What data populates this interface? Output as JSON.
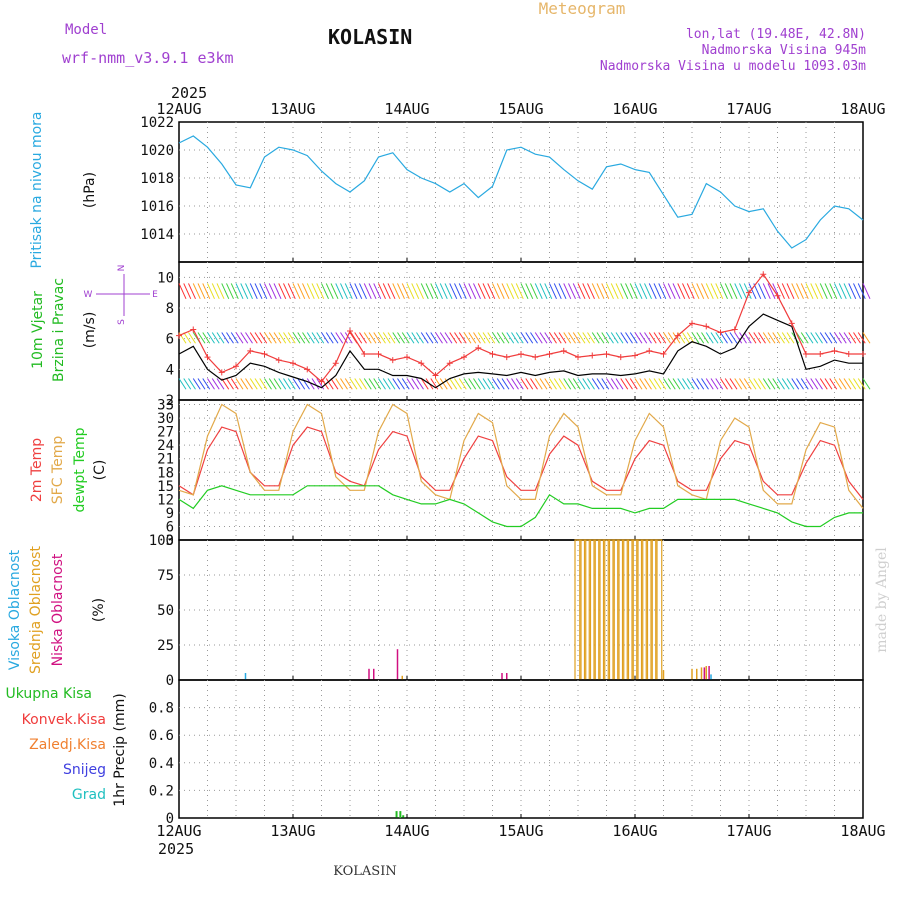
{
  "header": {
    "model_label": "Model",
    "model_name": "wrf-nmm_v3.9.1  e3km",
    "station": "KOLASIN",
    "chart_kind": "Meteogram",
    "lonlat": "lon,lat (19.48E, 42.8N)",
    "altitude": "Nadmorska Visina 945m",
    "model_altitude": "Nadmorska Visina u modelu 1093.03m",
    "year": "2025",
    "footer_station": "KOLASIN",
    "watermark": "made by Angel"
  },
  "colors": {
    "pressure": "#29a9e0",
    "wind_line": "#000000",
    "gust": "#f03c3c",
    "temp2m": "#ef4040",
    "sfc_temp": "#e2a94a",
    "dewpt": "#22cc22",
    "cloud_high": "#29a9e0",
    "cloud_mid": "#e0a020",
    "cloud_low": "#d01080",
    "rain": "#22bb22"
  },
  "chart_data": [
    {
      "type": "line",
      "id": "pressure",
      "title": "Pritisak na nivou mora",
      "ylabel": "(hPa)",
      "ylim": [
        1012,
        1022
      ],
      "yticks": [
        1014,
        1016,
        1018,
        1020,
        1022
      ],
      "x_unit": "hours since 12AUG 00",
      "x": [
        0,
        3,
        6,
        9,
        12,
        15,
        18,
        21,
        24,
        27,
        30,
        33,
        36,
        39,
        42,
        45,
        48,
        51,
        54,
        57,
        60,
        63,
        66,
        69,
        72,
        75,
        78,
        81,
        84,
        87,
        90,
        93,
        96,
        99,
        102,
        105,
        108,
        111,
        114,
        117,
        120,
        123,
        126,
        129,
        132,
        135,
        138,
        141,
        144
      ],
      "series": [
        {
          "name": "Pritisak",
          "values": [
            1020.5,
            1021.0,
            1020.2,
            1019.0,
            1017.5,
            1017.3,
            1019.5,
            1020.2,
            1020.0,
            1019.6,
            1018.5,
            1017.6,
            1017.0,
            1017.8,
            1019.5,
            1019.8,
            1018.6,
            1018.0,
            1017.6,
            1017.0,
            1017.6,
            1016.6,
            1017.4,
            1020.0,
            1020.2,
            1019.7,
            1019.5,
            1018.6,
            1017.8,
            1017.2,
            1018.8,
            1019.0,
            1018.6,
            1018.4,
            1016.8,
            1015.2,
            1015.4,
            1017.6,
            1017.0,
            1016.0,
            1015.6,
            1015.8,
            1014.2,
            1013.0,
            1013.6,
            1015.0,
            1016.0,
            1015.8,
            1015.0
          ]
        }
      ]
    },
    {
      "type": "line",
      "id": "wind",
      "title": "10m Vjetar",
      "title2": "Brzina i Pravac",
      "ylabel": "(m/s)",
      "ylim": [
        2,
        11
      ],
      "yticks": [
        2,
        4,
        6,
        8,
        10
      ],
      "compass": {
        "north": "N",
        "west": "W",
        "east": "E",
        "south": "S"
      },
      "x": [
        0,
        3,
        6,
        9,
        12,
        15,
        18,
        21,
        24,
        27,
        30,
        33,
        36,
        39,
        42,
        45,
        48,
        51,
        54,
        57,
        60,
        63,
        66,
        69,
        72,
        75,
        78,
        81,
        84,
        87,
        90,
        93,
        96,
        99,
        102,
        105,
        108,
        111,
        114,
        117,
        120,
        123,
        126,
        129,
        132,
        135,
        138,
        141,
        144
      ],
      "series": [
        {
          "name": "Brzina",
          "values": [
            5.0,
            5.5,
            4.0,
            3.3,
            3.6,
            4.4,
            4.2,
            3.8,
            3.5,
            3.2,
            2.8,
            3.6,
            5.2,
            4.0,
            4.0,
            3.6,
            3.6,
            3.4,
            2.8,
            3.4,
            3.7,
            3.8,
            3.7,
            3.6,
            3.8,
            3.6,
            3.8,
            3.9,
            3.6,
            3.7,
            3.7,
            3.6,
            3.7,
            3.9,
            3.7,
            5.2,
            5.8,
            5.5,
            5.0,
            5.4,
            6.8,
            7.6,
            7.2,
            6.8,
            4.0,
            4.2,
            4.6,
            4.4,
            4.4
          ]
        },
        {
          "name": "Udar",
          "values": [
            6.2,
            6.6,
            4.8,
            3.8,
            4.2,
            5.2,
            5.0,
            4.6,
            4.4,
            4.0,
            3.2,
            4.4,
            6.5,
            5.0,
            5.0,
            4.6,
            4.8,
            4.4,
            3.6,
            4.4,
            4.8,
            5.4,
            5.0,
            4.8,
            5.0,
            4.8,
            5.0,
            5.2,
            4.8,
            4.9,
            5.0,
            4.8,
            4.9,
            5.2,
            5.0,
            6.2,
            7.0,
            6.8,
            6.4,
            6.6,
            9.0,
            10.2,
            8.8,
            7.0,
            5.0,
            5.0,
            5.2,
            5.0,
            5.0
          ]
        }
      ]
    },
    {
      "type": "line",
      "id": "temperature",
      "title": "2m Temp",
      "title2": "SFC Temp",
      "title3": "dewpt Temp",
      "ylabel": "(C)",
      "ylim": [
        3,
        34
      ],
      "yticks": [
        3,
        6,
        9,
        12,
        15,
        18,
        21,
        24,
        27,
        30,
        33
      ],
      "x": [
        0,
        3,
        6,
        9,
        12,
        15,
        18,
        21,
        24,
        27,
        30,
        33,
        36,
        39,
        42,
        45,
        48,
        51,
        54,
        57,
        60,
        63,
        66,
        69,
        72,
        75,
        78,
        81,
        84,
        87,
        90,
        93,
        96,
        99,
        102,
        105,
        108,
        111,
        114,
        117,
        120,
        123,
        126,
        129,
        132,
        135,
        138,
        141,
        144
      ],
      "series": [
        {
          "name": "2m Temp",
          "values": [
            15,
            13,
            23,
            28,
            27,
            18,
            15,
            15,
            24,
            28,
            27,
            18,
            16,
            15,
            23,
            27,
            26,
            17,
            14,
            14,
            21,
            26,
            25,
            17,
            14,
            14,
            22,
            26,
            24,
            16,
            14,
            14,
            21,
            25,
            24,
            16,
            14,
            14,
            21,
            25,
            24,
            16,
            13,
            13,
            20,
            25,
            24,
            16,
            12
          ]
        },
        {
          "name": "SFC Temp",
          "values": [
            14,
            13,
            26,
            33,
            31,
            18,
            14,
            14,
            27,
            33,
            31,
            17,
            14,
            14,
            27,
            33,
            31,
            16,
            13,
            12,
            25,
            31,
            29,
            15,
            12,
            12,
            26,
            31,
            28,
            15,
            13,
            13,
            25,
            31,
            28,
            15,
            13,
            12,
            25,
            30,
            28,
            14,
            11,
            11,
            23,
            29,
            28,
            14,
            10
          ]
        },
        {
          "name": "dewpt Temp",
          "values": [
            12,
            10,
            14,
            15,
            14,
            13,
            13,
            13,
            13,
            15,
            15,
            15,
            15,
            15,
            15,
            13,
            12,
            11,
            11,
            12,
            11,
            9,
            7,
            6,
            6,
            8,
            13,
            11,
            11,
            10,
            10,
            10,
            9,
            10,
            10,
            12,
            12,
            12,
            12,
            12,
            11,
            10,
            9,
            7,
            6,
            6,
            8,
            9,
            9
          ]
        }
      ]
    },
    {
      "type": "bar",
      "id": "clouds",
      "title": "Visoka Oblacnost",
      "title2": "Srednja Oblacnost",
      "title3": "Niska Oblacnost",
      "ylabel": "(%)",
      "ylim": [
        0,
        100
      ],
      "yticks": [
        0,
        25,
        50,
        75,
        100
      ],
      "bars": [
        {
          "x": 14,
          "layer": "Visoka",
          "value": 5
        },
        {
          "x": 40,
          "layer": "Niska",
          "value": 8
        },
        {
          "x": 41,
          "layer": "Niska",
          "value": 8
        },
        {
          "x": 46,
          "layer": "Niska",
          "value": 22
        },
        {
          "x": 47,
          "layer": "Srednja",
          "value": 3
        },
        {
          "x": 68,
          "layer": "Niska",
          "value": 5
        },
        {
          "x": 69,
          "layer": "Niska",
          "value": 5
        },
        {
          "x": 84,
          "layer": "Srednja",
          "value": 100
        },
        {
          "x": 85,
          "layer": "Srednja",
          "value": 100
        },
        {
          "x": 86,
          "layer": "Srednja",
          "value": 100
        },
        {
          "x": 87,
          "layer": "Srednja",
          "value": 100
        },
        {
          "x": 88,
          "layer": "Srednja",
          "value": 100
        },
        {
          "x": 89,
          "layer": "Srednja",
          "value": 100
        },
        {
          "x": 90,
          "layer": "Srednja",
          "value": 100
        },
        {
          "x": 91,
          "layer": "Srednja",
          "value": 100
        },
        {
          "x": 92,
          "layer": "Srednja",
          "value": 100
        },
        {
          "x": 93,
          "layer": "Srednja",
          "value": 100
        },
        {
          "x": 94,
          "layer": "Srednja",
          "value": 100
        },
        {
          "x": 95,
          "layer": "Srednja",
          "value": 100
        },
        {
          "x": 96,
          "layer": "Srednja",
          "value": 100
        },
        {
          "x": 97,
          "layer": "Srednja",
          "value": 100
        },
        {
          "x": 98,
          "layer": "Srednja",
          "value": 100
        },
        {
          "x": 99,
          "layer": "Srednja",
          "value": 100
        },
        {
          "x": 100,
          "layer": "Srednja",
          "value": 100
        },
        {
          "x": 101,
          "layer": "Srednja",
          "value": 100
        },
        {
          "x": 102,
          "layer": "Srednja",
          "value": 7
        },
        {
          "x": 108,
          "layer": "Srednja",
          "value": 8
        },
        {
          "x": 109,
          "layer": "Srednja",
          "value": 8
        },
        {
          "x": 110,
          "layer": "Srednja",
          "value": 9
        },
        {
          "x": 110.6,
          "layer": "Niska",
          "value": 9
        },
        {
          "x": 111,
          "layer": "Srednja",
          "value": 10
        },
        {
          "x": 111.6,
          "layer": "Niska",
          "value": 10
        },
        {
          "x": 112,
          "layer": "Visoka",
          "value": 4
        }
      ]
    },
    {
      "type": "bar",
      "id": "precip",
      "legend": [
        "Ukupna Kisa",
        "Konvek.Kisa",
        "Zaledj.Kisa",
        "Snijeg",
        "Grad"
      ],
      "ylabel": "1hr Precip (mm)",
      "ylim": [
        0,
        1.0
      ],
      "yticks": [
        0,
        0.2,
        0.4,
        0.6,
        0.8
      ],
      "bars": [
        {
          "x": 45.8,
          "value": 0.05
        },
        {
          "x": 46.6,
          "value": 0.05
        },
        {
          "x": 47.2,
          "value": 0.02
        }
      ]
    }
  ],
  "x_axis": {
    "tick_labels": [
      "12AUG",
      "13AUG",
      "14AUG",
      "15AUG",
      "16AUG",
      "17AUG",
      "18AUG"
    ],
    "tick_hours": [
      0,
      24,
      48,
      72,
      96,
      120,
      144
    ]
  }
}
